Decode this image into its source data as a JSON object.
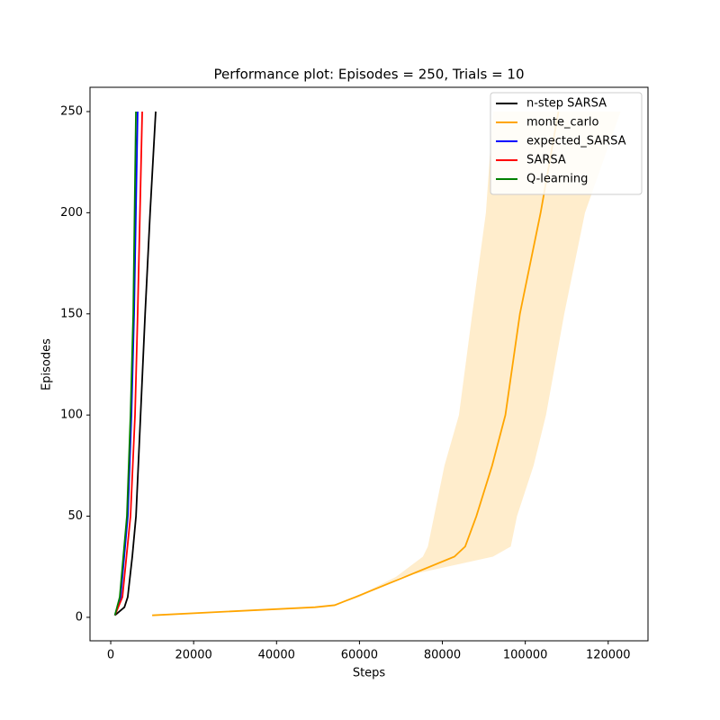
{
  "chart_data": {
    "type": "line",
    "title": "Performance plot: Episodes = 250, Trials = 10",
    "x_label": "Steps",
    "y_label": "Episodes",
    "xlim": [
      -5000,
      129600
    ],
    "ylim": [
      -11.6,
      262
    ],
    "xticks": [
      0,
      20000,
      40000,
      60000,
      80000,
      100000,
      120000
    ],
    "yticks": [
      0,
      50,
      100,
      150,
      200,
      250
    ],
    "legend": "upper right",
    "series": [
      {
        "name": "n-step SARSA",
        "color": "#000000",
        "x": [
          1000,
          3300,
          4100,
          5200,
          6100,
          7200,
          8300,
          9500,
          10850
        ],
        "values": [
          1,
          5,
          10,
          30,
          50,
          100,
          150,
          200,
          250
        ]
      },
      {
        "name": "monte_carlo",
        "color": "#ffa500",
        "x": [
          10000,
          49300,
          54000,
          59000,
          71000,
          82900,
          85500,
          88200,
          92000,
          95200,
          98700,
          103700,
          108000
        ],
        "values": [
          1,
          5,
          6,
          10,
          20,
          30,
          35,
          50,
          75,
          100,
          150,
          200,
          250
        ],
        "band_lower": [
          10000,
          49300,
          54000,
          60000,
          70000,
          92200,
          96500,
          98000,
          102000,
          105000,
          109400,
          114400,
          123000
        ],
        "band_upper": [
          10000,
          49300,
          54000,
          59000,
          68800,
          75300,
          76500,
          78000,
          80500,
          84000,
          87200,
          90500,
          92200
        ]
      },
      {
        "name": "expected_SARSA",
        "color": "#0000ff",
        "x": [
          1000,
          2390,
          4120,
          5000,
          5640,
          6500
        ],
        "values": [
          1,
          10,
          50,
          100,
          150,
          250
        ]
      },
      {
        "name": "SARSA",
        "color": "#ff0000",
        "x": [
          1000,
          2820,
          4770,
          5860,
          6500,
          7600
        ],
        "values": [
          1,
          10,
          50,
          100,
          150,
          250
        ]
      },
      {
        "name": "Q-learning",
        "color": "#008000",
        "x": [
          1000,
          2170,
          3900,
          4770,
          5430,
          6080
        ],
        "values": [
          1,
          10,
          50,
          100,
          150,
          250
        ]
      }
    ]
  }
}
